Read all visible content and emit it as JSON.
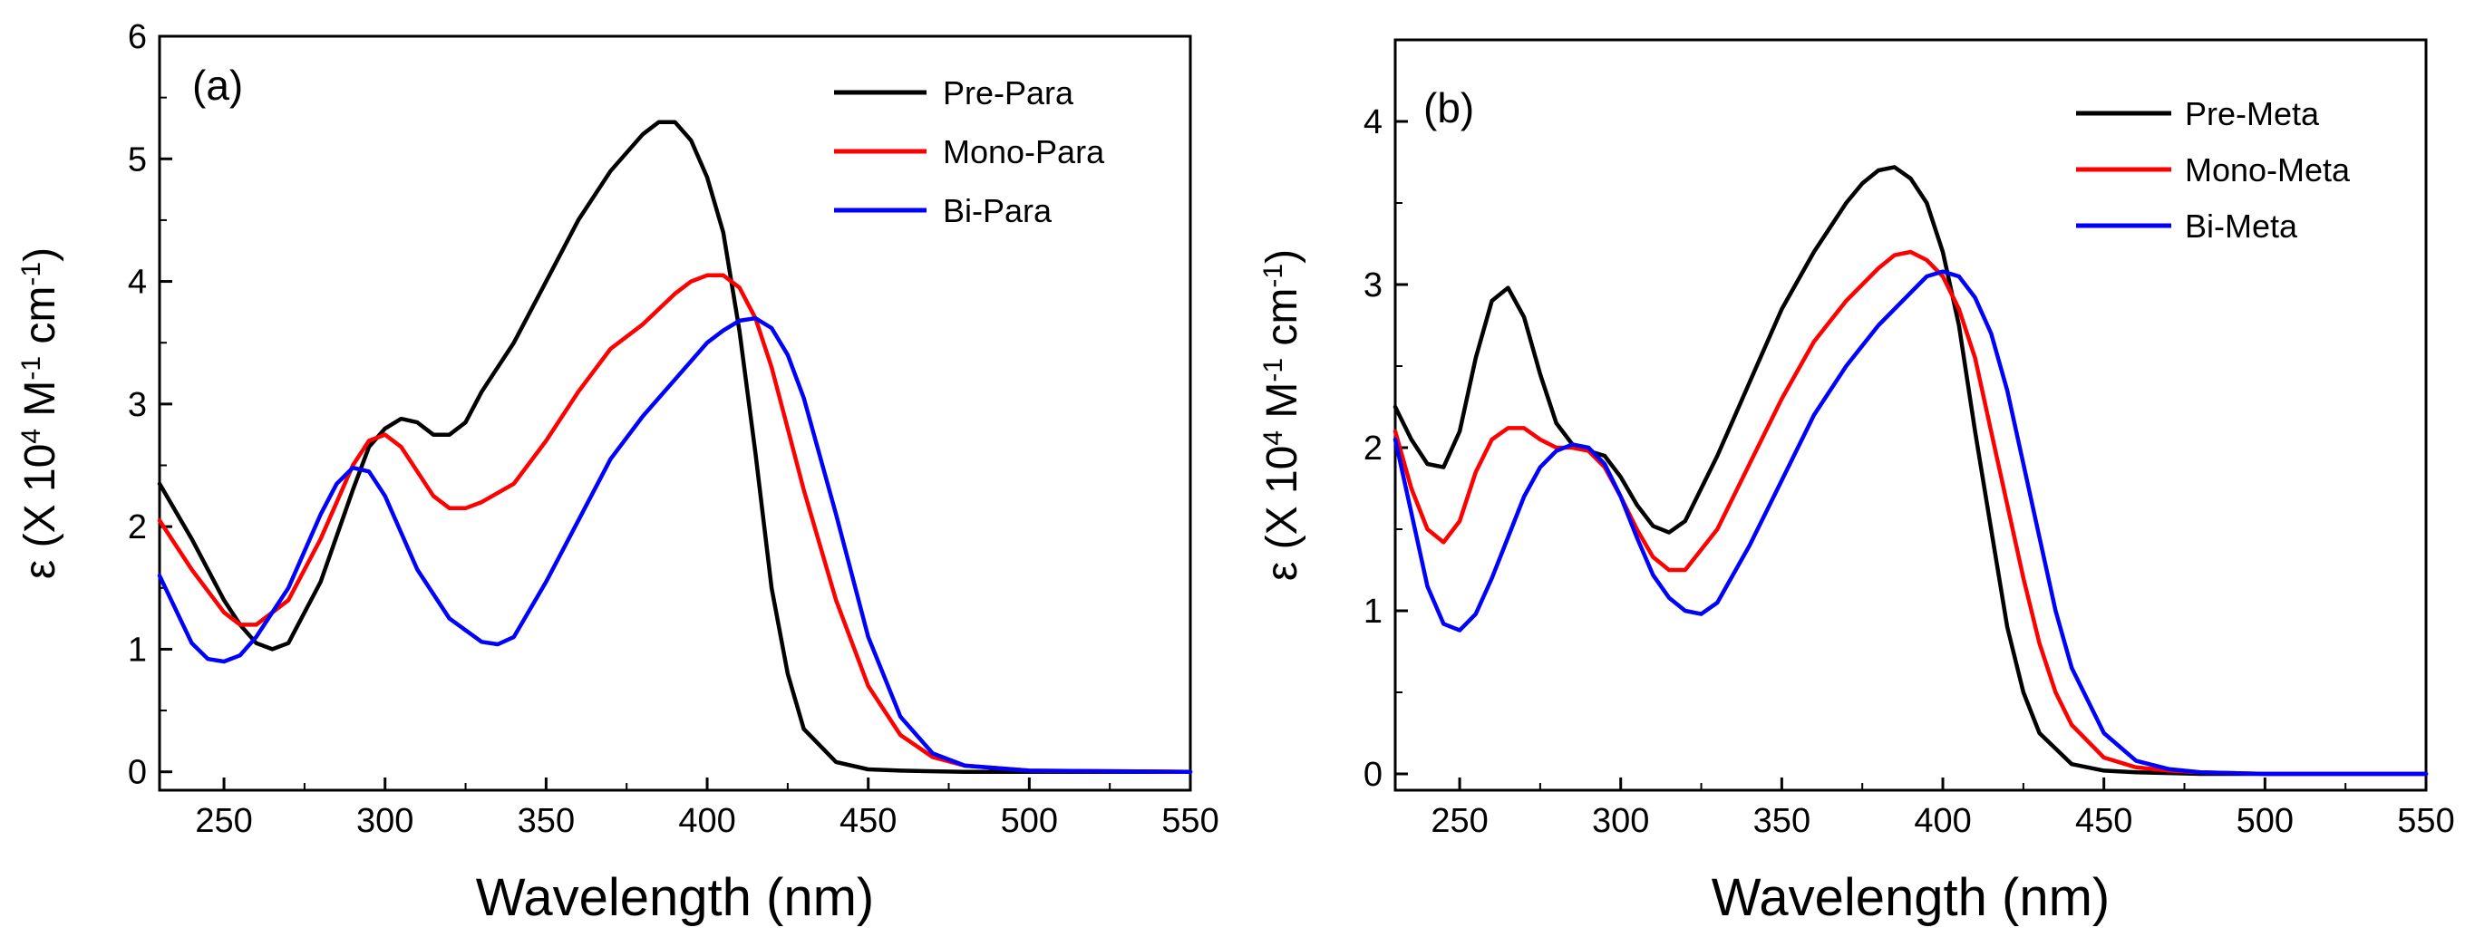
{
  "chart_data": [
    {
      "type": "line",
      "panel_label": "(a)",
      "xlabel": "Wavelength (nm)",
      "ylabel": {
        "base": "ε (X 10",
        "exp1": "4",
        "mid": " M",
        "exp2": "-1",
        "unit2": " cm",
        "exp3": "-1",
        "close": ")"
      },
      "xlim": [
        230,
        550
      ],
      "ylim": [
        -0.15,
        6
      ],
      "xticks": [
        250,
        300,
        350,
        400,
        450,
        500,
        550
      ],
      "yticks": [
        0,
        1,
        2,
        3,
        4,
        5,
        6
      ],
      "legend_position": "top-right",
      "series": [
        {
          "name": "Pre-Para",
          "color": "#000000",
          "x": [
            230,
            240,
            250,
            255,
            260,
            265,
            270,
            280,
            290,
            295,
            300,
            305,
            310,
            315,
            320,
            325,
            330,
            340,
            350,
            360,
            370,
            380,
            385,
            390,
            395,
            400,
            405,
            410,
            415,
            420,
            425,
            430,
            440,
            450,
            460,
            480,
            500,
            550
          ],
          "y": [
            2.35,
            1.9,
            1.4,
            1.2,
            1.05,
            1.0,
            1.05,
            1.55,
            2.3,
            2.65,
            2.8,
            2.88,
            2.85,
            2.75,
            2.75,
            2.85,
            3.1,
            3.5,
            4.0,
            4.5,
            4.9,
            5.2,
            5.3,
            5.3,
            5.15,
            4.85,
            4.4,
            3.6,
            2.6,
            1.5,
            0.8,
            0.35,
            0.08,
            0.02,
            0.01,
            0.0,
            0.0,
            0.0
          ]
        },
        {
          "name": "Mono-Para",
          "color": "#ff0000",
          "x": [
            230,
            240,
            250,
            255,
            260,
            270,
            280,
            290,
            295,
            300,
            305,
            310,
            315,
            320,
            325,
            330,
            340,
            350,
            360,
            370,
            380,
            390,
            395,
            400,
            405,
            410,
            415,
            420,
            425,
            430,
            440,
            450,
            460,
            470,
            480,
            500,
            550
          ],
          "y": [
            2.05,
            1.65,
            1.3,
            1.2,
            1.2,
            1.4,
            1.9,
            2.5,
            2.7,
            2.75,
            2.65,
            2.45,
            2.25,
            2.15,
            2.15,
            2.2,
            2.35,
            2.7,
            3.1,
            3.45,
            3.65,
            3.9,
            4.0,
            4.05,
            4.05,
            3.95,
            3.7,
            3.3,
            2.8,
            2.3,
            1.4,
            0.7,
            0.3,
            0.12,
            0.05,
            0.01,
            0.0
          ]
        },
        {
          "name": "Bi-Para",
          "color": "#0000ff",
          "x": [
            230,
            240,
            245,
            250,
            255,
            260,
            270,
            280,
            285,
            290,
            295,
            300,
            305,
            310,
            320,
            330,
            335,
            340,
            350,
            360,
            370,
            380,
            390,
            400,
            405,
            410,
            415,
            420,
            425,
            430,
            440,
            450,
            460,
            470,
            480,
            500,
            550
          ],
          "y": [
            1.6,
            1.05,
            0.92,
            0.9,
            0.95,
            1.1,
            1.5,
            2.1,
            2.35,
            2.48,
            2.45,
            2.25,
            1.95,
            1.65,
            1.25,
            1.06,
            1.04,
            1.1,
            1.55,
            2.05,
            2.55,
            2.9,
            3.2,
            3.5,
            3.6,
            3.68,
            3.7,
            3.62,
            3.4,
            3.05,
            2.1,
            1.1,
            0.45,
            0.15,
            0.05,
            0.01,
            0.0
          ]
        }
      ]
    },
    {
      "type": "line",
      "panel_label": "(b)",
      "xlabel": "Wavelength (nm)",
      "ylabel": {
        "base": "ε (X 10",
        "exp1": "4",
        "mid": " M",
        "exp2": "-1",
        "unit2": " cm",
        "exp3": "-1",
        "close": ")"
      },
      "xlim": [
        230,
        550
      ],
      "ylim": [
        -0.1,
        4.5
      ],
      "xticks": [
        250,
        300,
        350,
        400,
        450,
        500,
        550
      ],
      "yticks": [
        0,
        1,
        2,
        3,
        4
      ],
      "legend_position": "top-right",
      "series": [
        {
          "name": "Pre-Meta",
          "color": "#000000",
          "x": [
            230,
            235,
            240,
            245,
            250,
            255,
            260,
            265,
            270,
            275,
            280,
            285,
            290,
            295,
            300,
            305,
            310,
            315,
            320,
            330,
            340,
            350,
            360,
            370,
            375,
            380,
            385,
            390,
            395,
            400,
            405,
            410,
            415,
            420,
            425,
            430,
            440,
            450,
            460,
            480,
            500,
            550
          ],
          "y": [
            2.25,
            2.05,
            1.9,
            1.88,
            2.1,
            2.55,
            2.9,
            2.98,
            2.8,
            2.45,
            2.15,
            2.02,
            1.98,
            1.95,
            1.82,
            1.65,
            1.52,
            1.48,
            1.55,
            1.95,
            2.4,
            2.85,
            3.2,
            3.5,
            3.62,
            3.7,
            3.72,
            3.65,
            3.5,
            3.2,
            2.75,
            2.1,
            1.5,
            0.9,
            0.5,
            0.25,
            0.06,
            0.02,
            0.01,
            0.0,
            0.0,
            0.0
          ]
        },
        {
          "name": "Mono-Meta",
          "color": "#ff0000",
          "x": [
            230,
            235,
            240,
            245,
            250,
            255,
            260,
            265,
            270,
            275,
            280,
            285,
            290,
            295,
            300,
            305,
            310,
            315,
            320,
            330,
            340,
            350,
            360,
            370,
            380,
            385,
            390,
            395,
            400,
            405,
            410,
            415,
            420,
            425,
            430,
            435,
            440,
            450,
            460,
            470,
            480,
            500,
            550
          ],
          "y": [
            2.1,
            1.75,
            1.5,
            1.42,
            1.55,
            1.85,
            2.05,
            2.12,
            2.12,
            2.05,
            2.0,
            2.0,
            1.98,
            1.88,
            1.7,
            1.5,
            1.33,
            1.25,
            1.25,
            1.5,
            1.9,
            2.3,
            2.65,
            2.9,
            3.1,
            3.18,
            3.2,
            3.15,
            3.05,
            2.85,
            2.55,
            2.1,
            1.65,
            1.2,
            0.8,
            0.5,
            0.3,
            0.1,
            0.04,
            0.02,
            0.01,
            0.0,
            0.0
          ]
        },
        {
          "name": "Bi-Meta",
          "color": "#0000ff",
          "x": [
            230,
            235,
            240,
            245,
            250,
            255,
            260,
            265,
            270,
            275,
            280,
            285,
            290,
            295,
            300,
            305,
            310,
            315,
            320,
            325,
            330,
            340,
            350,
            360,
            370,
            380,
            390,
            395,
            400,
            405,
            410,
            415,
            420,
            425,
            430,
            435,
            440,
            450,
            460,
            470,
            480,
            500,
            550
          ],
          "y": [
            2.05,
            1.6,
            1.15,
            0.92,
            0.88,
            0.98,
            1.2,
            1.45,
            1.7,
            1.88,
            1.98,
            2.02,
            2.0,
            1.9,
            1.7,
            1.45,
            1.22,
            1.08,
            1.0,
            0.98,
            1.05,
            1.4,
            1.8,
            2.2,
            2.5,
            2.75,
            2.95,
            3.05,
            3.08,
            3.05,
            2.92,
            2.7,
            2.35,
            1.9,
            1.45,
            1.0,
            0.65,
            0.25,
            0.08,
            0.03,
            0.01,
            0.0,
            0.0
          ]
        }
      ]
    }
  ]
}
